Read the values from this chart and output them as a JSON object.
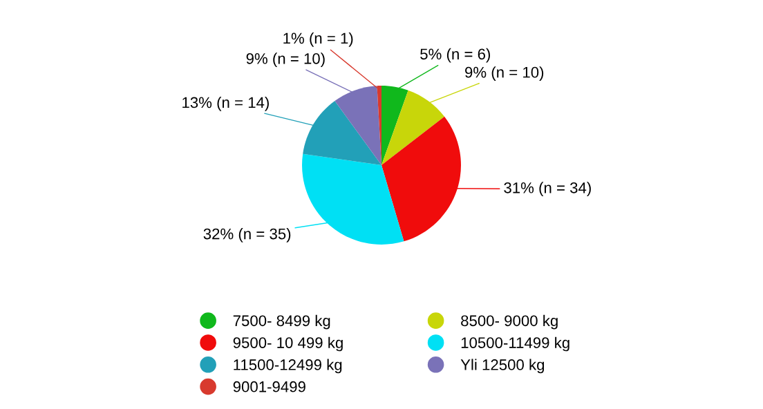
{
  "chart_data": {
    "type": "pie",
    "categories": [
      "7500- 8499 kg",
      "8500- 9000 kg",
      "9500- 10 499 kg",
      "10500-11499 kg",
      "11500-12499 kg",
      "Yli 12500 kg",
      "9001-9499"
    ],
    "values": [
      6,
      10,
      34,
      35,
      14,
      10,
      1
    ],
    "value_labels": [
      "5% (n = 6)",
      "9% (n = 10)",
      "31% (n = 34)",
      "32% (n = 35)",
      "13% (n = 14)",
      "9% (n = 10)",
      "1% (n = 1)"
    ],
    "colors": [
      "#10b81c",
      "#c8d60a",
      "#f00c0c",
      "#00e0f4",
      "#22a0b8",
      "#7a72b8",
      "#d83a2e"
    ],
    "legend": "bottom"
  }
}
